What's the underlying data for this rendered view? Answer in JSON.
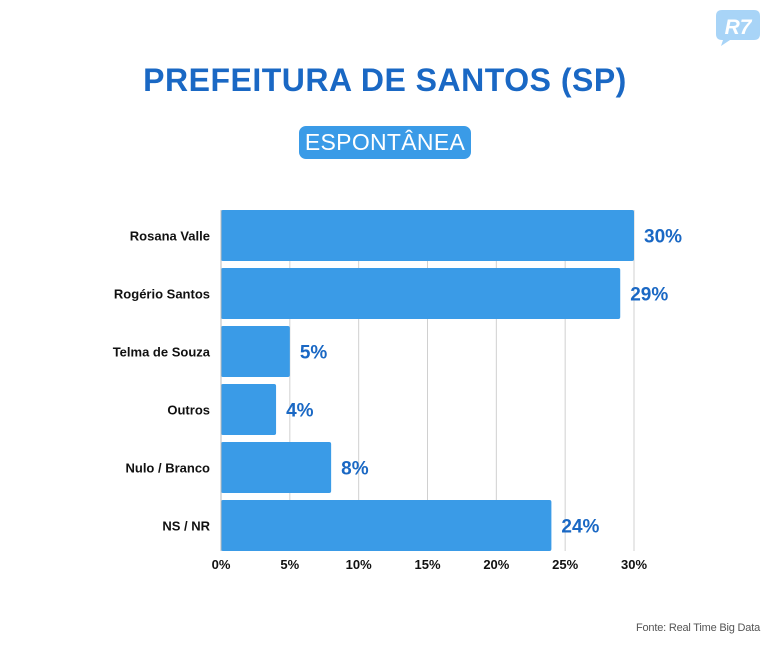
{
  "logo": {
    "text": "R7",
    "color": "#a8d4f7"
  },
  "header": {
    "title": "PREFEITURA DE SANTOS (SP)",
    "subtitle": "ESPONTÂNEA"
  },
  "chart_data": {
    "type": "bar",
    "orientation": "horizontal",
    "title": "PREFEITURA DE SANTOS (SP)",
    "subtitle": "ESPONTÂNEA",
    "categories": [
      "Rosana Valle",
      "Rogério Santos",
      "Telma de Souza",
      "Outros",
      "Nulo / Branco",
      "NS / NR"
    ],
    "values": [
      30,
      29,
      5,
      4,
      8,
      24
    ],
    "value_labels": [
      "30%",
      "29%",
      "5%",
      "4%",
      "8%",
      "24%"
    ],
    "xticks": [
      0,
      5,
      10,
      15,
      20,
      25,
      30
    ],
    "xtick_labels": [
      "0%",
      "5%",
      "10%",
      "15%",
      "20%",
      "25%",
      "30%"
    ],
    "xlim": [
      0,
      30
    ],
    "xlabel": "",
    "ylabel": "",
    "grid": true,
    "bar_color": "#3a9be7",
    "label_color": "#1a68c4"
  },
  "source": "Fonte: Real Time Big Data"
}
